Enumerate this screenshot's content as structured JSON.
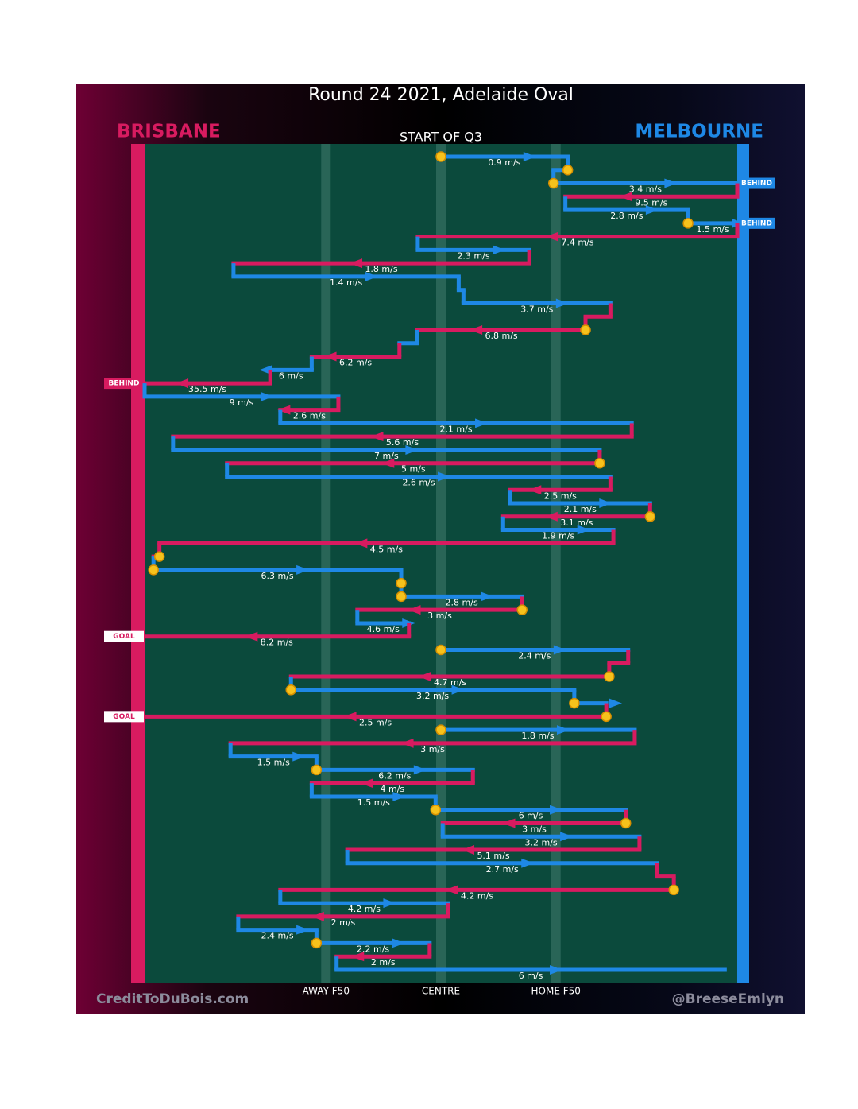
{
  "chart_data": {
    "type": "possession-chain",
    "title": "Round 24 2021, Adelaide Oval",
    "subtitle": "START OF Q3",
    "teams": [
      {
        "name": "BRISBANE",
        "color": "#d81b60"
      },
      {
        "name": "MELBOURNE",
        "color": "#1e88e5"
      }
    ],
    "xlim": [
      0,
      100
    ],
    "xticks": [
      {
        "value": 30.6,
        "label": "AWAY F50"
      },
      {
        "value": 50,
        "label": "CENTRE"
      },
      {
        "value": 69.4,
        "label": "HOME F50"
      }
    ],
    "segments": [
      {
        "team": 1,
        "from": 50,
        "to": 71.4,
        "speed": "0.9 m/s",
        "stop": true
      },
      {
        "team": 1,
        "from": 71.4,
        "to": 69,
        "stop": true
      },
      {
        "team": 1,
        "from": 69,
        "to": 100,
        "speed": "3.4 m/s",
        "stop": true,
        "outcome": "BEHIND"
      },
      {
        "team": 0,
        "from": 100,
        "to": 71,
        "speed": "9.5 m/s"
      },
      {
        "team": 1,
        "from": 71,
        "to": 91.7,
        "speed": "2.8 m/s"
      },
      {
        "team": 1,
        "from": 91.7,
        "to": 100,
        "speed": "1.5 m/s",
        "stop": true,
        "outcome": "BEHIND"
      },
      {
        "team": 0,
        "from": 100,
        "to": 46.1,
        "speed": "7.4 m/s"
      },
      {
        "team": 1,
        "from": 46.1,
        "to": 64.9,
        "speed": "2.3 m/s"
      },
      {
        "team": 0,
        "from": 64.9,
        "to": 15,
        "speed": "1.8 m/s"
      },
      {
        "team": 1,
        "from": 15,
        "to": 53,
        "speed": "1.4 m/s"
      },
      {
        "team": 1,
        "from": 53,
        "to": 53.8
      },
      {
        "team": 1,
        "from": 53.8,
        "to": 78.6,
        "speed": "3.7 m/s"
      },
      {
        "team": 0,
        "from": 78.6,
        "to": 74.4
      },
      {
        "team": 0,
        "from": 74.4,
        "to": 46,
        "speed": "6.8 m/s",
        "stop": true
      },
      {
        "team": 1,
        "from": 46,
        "to": 43
      },
      {
        "team": 0,
        "from": 43,
        "to": 28.2,
        "speed": "6.2 m/s"
      },
      {
        "team": 1,
        "from": 28.2,
        "to": 21.2,
        "speed": "6 m/s"
      },
      {
        "team": 0,
        "from": 21.2,
        "to": 0,
        "speed": "35.5 m/s",
        "outcome": "BEHIND"
      },
      {
        "team": 1,
        "from": 0,
        "to": 32.7,
        "speed": "9 m/s"
      },
      {
        "team": 0,
        "from": 32.7,
        "to": 22.9,
        "speed": "2.6 m/s"
      },
      {
        "team": 1,
        "from": 22.9,
        "to": 82.2,
        "speed": "2.1 m/s"
      },
      {
        "team": 0,
        "from": 82.2,
        "to": 4.8,
        "speed": "5.6 m/s"
      },
      {
        "team": 1,
        "from": 4.8,
        "to": 76.8,
        "speed": "7 m/s"
      },
      {
        "team": 0,
        "from": 76.8,
        "to": 13.9,
        "speed": "5 m/s",
        "stop": true
      },
      {
        "team": 1,
        "from": 13.9,
        "to": 78.6,
        "speed": "2.6 m/s"
      },
      {
        "team": 0,
        "from": 78.6,
        "to": 61.7,
        "speed": "2.5 m/s"
      },
      {
        "team": 1,
        "from": 61.7,
        "to": 85.3,
        "speed": "2.1 m/s"
      },
      {
        "team": 0,
        "from": 85.3,
        "to": 60.5,
        "speed": "3.1 m/s",
        "stop": true
      },
      {
        "team": 1,
        "from": 60.5,
        "to": 79.1,
        "speed": "1.9 m/s"
      },
      {
        "team": 0,
        "from": 79.1,
        "to": 2.5,
        "speed": "4.5 m/s"
      },
      {
        "team": 0,
        "from": 2.5,
        "to": 1.5,
        "stop": true
      },
      {
        "team": 1,
        "from": 1.5,
        "to": 43.3,
        "speed": "6.3 m/s",
        "stop": true
      },
      {
        "team": 1,
        "from": 43.3,
        "to": 43.3,
        "stop": true
      },
      {
        "team": 1,
        "from": 43.3,
        "to": 63.7,
        "speed": "2.8 m/s",
        "stop": true
      },
      {
        "team": 0,
        "from": 63.7,
        "to": 35.9,
        "speed": "3 m/s",
        "stop": true
      },
      {
        "team": 1,
        "from": 35.9,
        "to": 44.6,
        "speed": "4.6 m/s"
      },
      {
        "team": 0,
        "from": 44.6,
        "to": 0,
        "speed": "8.2 m/s",
        "outcome": "GOAL"
      },
      {
        "team": 1,
        "from": 50,
        "to": 81.6,
        "speed": "2.4 m/s",
        "stop": true
      },
      {
        "team": 0,
        "from": 81.6,
        "to": 78.4
      },
      {
        "team": 0,
        "from": 78.4,
        "to": 24.7,
        "speed": "4.7 m/s",
        "stop": true
      },
      {
        "team": 1,
        "from": 24.7,
        "to": 72.5,
        "speed": "3.2 m/s",
        "stop": true
      },
      {
        "team": 1,
        "from": 72.5,
        "to": 77.9,
        "stop": true
      },
      {
        "team": 0,
        "from": 77.9,
        "to": 0,
        "speed": "2.5 m/s",
        "stop": true,
        "outcome": "GOAL"
      },
      {
        "team": 1,
        "from": 50,
        "to": 82.7,
        "speed": "1.8 m/s",
        "stop": true
      },
      {
        "team": 0,
        "from": 82.7,
        "to": 14.5,
        "speed": "3 m/s"
      },
      {
        "team": 1,
        "from": 14.5,
        "to": 29,
        "speed": "1.5 m/s"
      },
      {
        "team": 1,
        "from": 29,
        "to": 55.4,
        "speed": "6.2 m/s",
        "stop": true
      },
      {
        "team": 0,
        "from": 55.4,
        "to": 28.2,
        "speed": "4 m/s"
      },
      {
        "team": 1,
        "from": 28.2,
        "to": 49.1,
        "speed": "1.5 m/s"
      },
      {
        "team": 1,
        "from": 49.1,
        "to": 81.2,
        "speed": "6 m/s",
        "stop": true
      },
      {
        "team": 0,
        "from": 81.2,
        "to": 50.3,
        "speed": "3 m/s",
        "stop": true
      },
      {
        "team": 1,
        "from": 50.3,
        "to": 83.5,
        "speed": "3.2 m/s"
      },
      {
        "team": 0,
        "from": 83.5,
        "to": 34.2,
        "speed": "5.1 m/s"
      },
      {
        "team": 1,
        "from": 34.2,
        "to": 86.5,
        "speed": "2.7 m/s"
      },
      {
        "team": 0,
        "from": 86.5,
        "to": 89.3
      },
      {
        "team": 0,
        "from": 89.3,
        "to": 22.9,
        "speed": "4.2 m/s",
        "stop": true
      },
      {
        "team": 1,
        "from": 22.9,
        "to": 51.2,
        "speed": "4.2 m/s"
      },
      {
        "team": 0,
        "from": 51.2,
        "to": 15.8,
        "speed": "2 m/s"
      },
      {
        "team": 1,
        "from": 15.8,
        "to": 29,
        "speed": "2.4 m/s"
      },
      {
        "team": 1,
        "from": 29,
        "to": 48.1,
        "speed": "2.2 m/s",
        "stop": true
      },
      {
        "team": 0,
        "from": 48.1,
        "to": 32.4,
        "speed": "2 m/s"
      },
      {
        "team": 1,
        "from": 32.4,
        "to": 97.9,
        "speed": "6 m/s"
      }
    ],
    "credits": [
      "CreditToDuBois.com",
      "@BreeseEmlyn"
    ]
  }
}
